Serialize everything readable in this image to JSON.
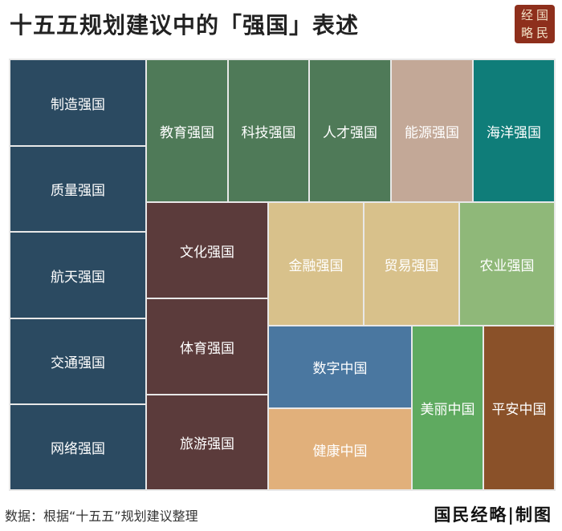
{
  "header": {
    "title": "十五五规划建议中的「强国」表述",
    "logo_rows": [
      "经国",
      "略民"
    ]
  },
  "tiles": [
    {
      "label": "制造强国",
      "color": "#2b4a61"
    },
    {
      "label": "质量强国",
      "color": "#2b4a61"
    },
    {
      "label": "航天强国",
      "color": "#2b4a61"
    },
    {
      "label": "交通强国",
      "color": "#2b4a61"
    },
    {
      "label": "网络强国",
      "color": "#2b4a61"
    },
    {
      "label": "教育强国",
      "color": "#4f7a58"
    },
    {
      "label": "科技强国",
      "color": "#4f7a58"
    },
    {
      "label": "人才强国",
      "color": "#4f7a58"
    },
    {
      "label": "能源强国",
      "color": "#c3a897"
    },
    {
      "label": "海洋强国",
      "color": "#0f7d79"
    },
    {
      "label": "文化强国",
      "color": "#5b3b3b"
    },
    {
      "label": "体育强国",
      "color": "#5b3b3b"
    },
    {
      "label": "旅游强国",
      "color": "#5b3b3b"
    },
    {
      "label": "金融强国",
      "color": "#d8c18b"
    },
    {
      "label": "贸易强国",
      "color": "#d8c18b"
    },
    {
      "label": "农业强国",
      "color": "#8fb879"
    },
    {
      "label": "数字中国",
      "color": "#4a77a0"
    },
    {
      "label": "健康中国",
      "color": "#e1b07b"
    },
    {
      "label": "美丽中国",
      "color": "#5faa60"
    },
    {
      "label": "平安中国",
      "color": "#8a5129"
    }
  ],
  "footer": {
    "source": "数据：根据“十五五”规划建议整理",
    "brand": "国民经略|制图"
  }
}
